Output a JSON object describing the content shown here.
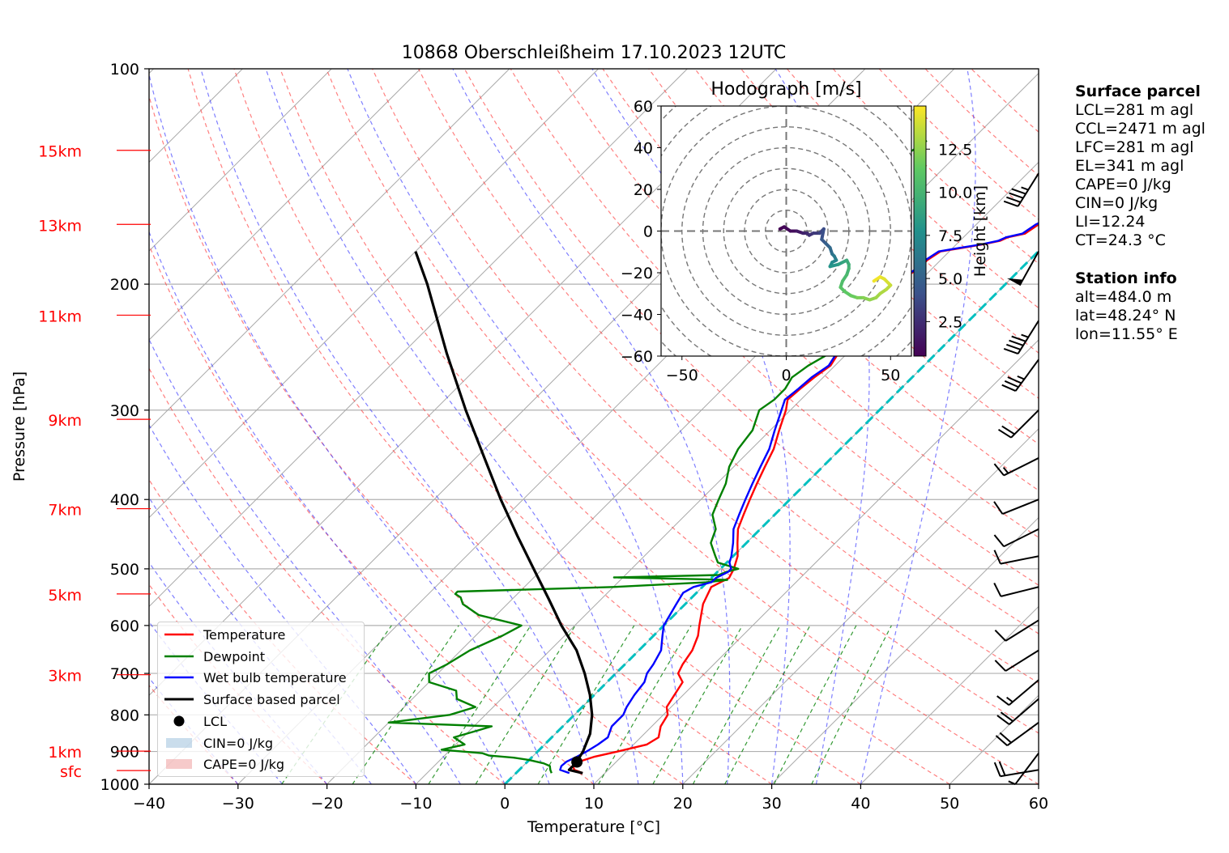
{
  "chart_data": {
    "type": "line",
    "title": "10868 Oberschleißheim 17.10.2023 12UTC",
    "xlabel": "Temperature [°C]",
    "ylabel": "Pressure [hPa]",
    "xlim": [
      -40,
      60
    ],
    "ylim": [
      1000,
      100
    ],
    "yscale": "log",
    "x_ticks": [
      -40,
      -30,
      -20,
      -10,
      0,
      10,
      20,
      30,
      40,
      50,
      60
    ],
    "x_tick_labels": [
      "−40",
      "−30",
      "−20",
      "−10",
      "0",
      "10",
      "20",
      "30",
      "40",
      "50",
      "60"
    ],
    "y_ticks": [
      100,
      200,
      300,
      400,
      500,
      600,
      700,
      800,
      900,
      1000
    ],
    "y_tick_labels": [
      "100",
      "200",
      "300",
      "400",
      "500",
      "600",
      "700",
      "800",
      "900",
      "1000"
    ],
    "height_markers": [
      {
        "label": "15km",
        "p": 130
      },
      {
        "label": "13km",
        "p": 165
      },
      {
        "label": "11km",
        "p": 221
      },
      {
        "label": "9km",
        "p": 309
      },
      {
        "label": "7km",
        "p": 412
      },
      {
        "label": "5km",
        "p": 542
      },
      {
        "label": "3km",
        "p": 703
      },
      {
        "label": "1km",
        "p": 899
      },
      {
        "label": "sfc",
        "p": 957
      }
    ],
    "series": [
      {
        "name": "Temperature",
        "color": "#ff0000",
        "p": [
          965,
          955,
          943,
          930,
          915,
          900,
          880,
          860,
          830,
          800,
          780,
          750,
          720,
          700,
          680,
          650,
          620,
          600,
          560,
          530,
          515,
          500,
          480,
          460,
          440,
          420,
          400,
          380,
          360,
          340,
          320,
          300,
          290,
          280,
          270,
          260,
          250,
          240,
          230,
          225,
          220,
          215,
          210,
          200,
          195,
          190,
          185,
          180,
          178,
          176,
          174,
          172,
          170,
          165,
          160,
          155,
          150,
          145,
          140,
          135,
          130
        ],
        "values": [
          7.5,
          6.2,
          5.6,
          5.8,
          7.0,
          9.0,
          11.5,
          12.0,
          11.0,
          10.5,
          9.5,
          9.0,
          8.5,
          7.0,
          6.5,
          6.0,
          5.0,
          4.0,
          2.0,
          1.0,
          2.0,
          1.5,
          0.5,
          -1.0,
          -2.5,
          -3.5,
          -4.5,
          -5.5,
          -6.5,
          -7.5,
          -9.0,
          -10.5,
          -11.5,
          -11.3,
          -11.0,
          -10.5,
          -11.0,
          -11.5,
          -12.5,
          -13.0,
          -12.5,
          -11.5,
          -11.8,
          -12.0,
          -12.0,
          -11.5,
          -11.5,
          -11.0,
          -9.0,
          -7.0,
          -5.5,
          -5.0,
          -3.5,
          -3.0,
          -2.0,
          -0.5,
          0.0,
          0.2,
          0.3,
          0.5,
          1.3
        ]
      },
      {
        "name": "Dewpoint",
        "color": "#008000",
        "p": [
          965,
          955,
          943,
          935,
          925,
          918,
          912,
          905,
          895,
          880,
          860,
          840,
          830,
          820,
          800,
          780,
          760,
          740,
          720,
          700,
          680,
          650,
          620,
          600,
          580,
          560,
          548,
          545,
          542,
          538,
          530,
          522,
          518,
          514,
          510,
          505,
          500,
          490,
          480,
          460,
          440,
          420,
          400,
          380,
          360,
          340,
          320,
          300,
          290,
          280,
          270,
          260,
          250,
          240,
          232,
          228,
          224,
          222,
          221,
          220,
          218,
          215,
          210,
          205,
          200,
          195,
          190,
          187,
          185,
          182,
          180,
          178,
          175,
          172,
          170,
          165,
          160,
          155,
          150,
          145,
          140,
          135,
          130,
          126
        ],
        "values": [
          4.0,
          3.5,
          3.0,
          2.0,
          0.0,
          -2.0,
          -5.0,
          -6.0,
          -11.0,
          -9.0,
          -11.0,
          -9.0,
          -8.0,
          -20.0,
          -14.0,
          -12.0,
          -15.0,
          -16.0,
          -20.0,
          -21.0,
          -20.0,
          -19.0,
          -17.0,
          -16.0,
          -22.0,
          -25.0,
          -26.0,
          -26.5,
          -27.0,
          -27.0,
          -10.0,
          0.0,
          2.0,
          -11.0,
          0.5,
          1.0,
          2.0,
          -1.0,
          -2.0,
          -4.0,
          -5.0,
          -7.0,
          -8.0,
          -9.0,
          -10.5,
          -11.5,
          -12.0,
          -13.5,
          -13.0,
          -13.0,
          -13.5,
          -13.0,
          -12.0,
          -12.5,
          -13.0,
          -12.0,
          -13.0,
          -21.0,
          -27.0,
          -27.5,
          -24.0,
          -19.0,
          -17.0,
          -16.0,
          -15.5,
          -15.0,
          -14.0,
          -13.5,
          -14.5,
          -15.0,
          -17.0,
          -18.0,
          -24.0,
          -28.0,
          -28.5,
          -28.0,
          -28.5,
          -28.0,
          -27.5,
          -27.5,
          -26.5,
          -26.5,
          -25.5,
          -25.0
        ]
      },
      {
        "name": "Wet bulb temperature",
        "color": "#0000ff",
        "p": [
          965,
          955,
          943,
          930,
          915,
          900,
          880,
          860,
          830,
          800,
          780,
          750,
          720,
          700,
          680,
          650,
          620,
          600,
          560,
          540,
          530,
          522,
          515,
          505,
          500,
          490,
          480,
          460,
          440,
          420,
          400,
          380,
          360,
          340,
          320,
          300,
          290,
          280,
          270,
          260,
          250,
          240,
          230,
          225,
          220,
          215,
          210,
          200,
          195,
          190,
          185,
          180,
          178,
          176,
          174,
          172,
          170,
          165,
          160,
          155,
          150,
          145,
          140,
          135,
          130
        ],
        "values": [
          6.0,
          4.6,
          4.3,
          4.4,
          5.0,
          5.5,
          6.0,
          6.3,
          5.5,
          5.5,
          5.0,
          4.5,
          4.2,
          3.5,
          3.2,
          2.5,
          1.0,
          0.0,
          -1.0,
          -1.5,
          -1.0,
          0.5,
          0.5,
          1.2,
          1.2,
          0.3,
          -0.2,
          -1.5,
          -3.0,
          -4.0,
          -5.0,
          -6.0,
          -7.0,
          -8.0,
          -9.5,
          -11.0,
          -11.8,
          -11.5,
          -11.3,
          -10.7,
          -11.2,
          -11.8,
          -12.7,
          -13.2,
          -12.7,
          -11.8,
          -12.0,
          -12.2,
          -12.2,
          -11.7,
          -11.7,
          -11.2,
          -9.3,
          -7.2,
          -5.7,
          -5.2,
          -3.8,
          -3.3,
          -2.2,
          -0.8,
          -0.2,
          0.0,
          0.2,
          0.4,
          1.2
        ]
      },
      {
        "name": "Surface based parcel",
        "color": "#000000",
        "p": [
          965,
          955,
          943,
          920,
          900,
          850,
          800,
          750,
          700,
          650,
          600,
          550,
          500,
          450,
          400,
          350,
          300,
          250,
          200,
          180
        ],
        "values": [
          7.5,
          5.6,
          5.6,
          5.4,
          5.1,
          3.9,
          2.0,
          -0.5,
          -3.5,
          -7.0,
          -11.5,
          -16.0,
          -21.0,
          -26.5,
          -32.5,
          -39.0,
          -46.5,
          -55.0,
          -65.0,
          -70.0
        ]
      }
    ],
    "lcl_marker": {
      "label": "LCL",
      "p": 931,
      "t": 5.6
    },
    "reference_isotherm": {
      "t": 0,
      "style": "cyan dashed"
    },
    "legend": {
      "placement": "lower-left",
      "entries": [
        "Temperature",
        "Dewpoint",
        "Wet bulb temperature",
        "Surface based parcel",
        "LCL",
        "CIN=0 J/kg",
        "CAPE=0 J/kg"
      ]
    },
    "wind_barbs": {
      "p": [
        955,
        905,
        820,
        760,
        715,
        650,
        590,
        530,
        480,
        440,
        400,
        350,
        300,
        255,
        225,
        180,
        140
      ],
      "u_kt": [
        18,
        3,
        15,
        15,
        13,
        8,
        8,
        8,
        10,
        10,
        10,
        12,
        15,
        22,
        25,
        25,
        25
      ],
      "v_kt": [
        3,
        4,
        11,
        13,
        11,
        5,
        5,
        2,
        2,
        5,
        4,
        6,
        15,
        30,
        40,
        45,
        40
      ]
    },
    "hodograph": {
      "title": "Hodograph [m/s]",
      "xlim": [
        -60,
        60
      ],
      "ylim": [
        -60,
        60
      ],
      "x_tick_labels": [
        "−50",
        "0",
        "50"
      ],
      "y_tick_labels": [
        "60",
        "40",
        "20",
        "0",
        "−20",
        "−40",
        "−60"
      ],
      "ring_spacing": 10,
      "colorbar": {
        "label": "Height [km]",
        "ticks": [
          "2.5",
          "5.0",
          "7.5",
          "10.0",
          "12.5"
        ],
        "range": [
          0.5,
          15
        ]
      },
      "u": [
        -3,
        -1,
        2,
        5,
        8,
        10,
        11,
        13,
        16,
        18,
        17,
        19,
        21,
        22,
        23,
        24,
        22,
        21,
        25,
        27,
        29,
        30,
        30,
        29,
        27,
        26,
        28,
        31,
        34,
        37,
        40,
        43,
        45,
        48,
        50,
        49,
        47,
        45,
        42
      ],
      "v": [
        1,
        2,
        0,
        0,
        -1,
        -1,
        -2,
        -1,
        -1,
        1,
        -4,
        -6,
        -8,
        -11,
        -12,
        -14,
        -15,
        -17,
        -16,
        -15,
        -14,
        -16,
        -18,
        -21,
        -24,
        -27,
        -29,
        -31,
        -32,
        -32,
        -33,
        -32,
        -30,
        -28,
        -26,
        -25,
        -23,
        -22,
        -24
      ],
      "h": [
        0.5,
        0.8,
        1.0,
        1.5,
        2.0,
        2.3,
        2.6,
        3.0,
        3.5,
        4.0,
        4.5,
        5.0,
        5.5,
        6.0,
        6.5,
        7.0,
        7.5,
        8.0,
        8.5,
        9.0,
        9.3,
        9.6,
        10.0,
        10.3,
        10.6,
        11.0,
        11.3,
        11.6,
        12.0,
        12.3,
        12.6,
        12.9,
        13.2,
        13.5,
        13.8,
        14.1,
        14.4,
        14.7,
        15.0
      ]
    }
  },
  "surface_parcel": {
    "title": "Surface parcel",
    "lines": [
      "LCL=281 m agl",
      "CCL=2471 m agl",
      "LFC=281 m agl",
      "EL=341 m agl",
      "CAPE=0 J/kg",
      "CIN=0 J/kg",
      "LI=12.24",
      "CT=24.3 °C"
    ]
  },
  "station_info": {
    "title": "Station info",
    "lines": [
      "alt=484.0 m",
      "lat=48.24° N",
      "lon=11.55° E"
    ]
  }
}
